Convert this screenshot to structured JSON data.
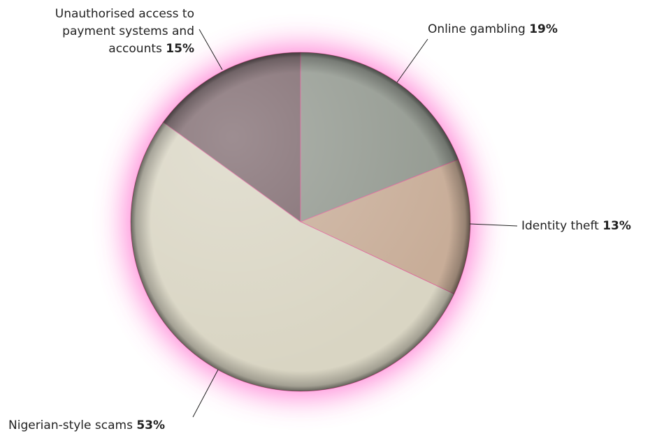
{
  "chart_data": {
    "type": "pie",
    "categories": [
      "Online gambling",
      "Identity theft",
      "Nigerian-style scams",
      "Unauthorised access to payment systems and accounts"
    ],
    "values": [
      19,
      13,
      53,
      15
    ],
    "value_labels": [
      "19%",
      "13%",
      "53%",
      "15%"
    ],
    "colors": [
      "#939990",
      "#c8ad98",
      "#d9d5c3",
      "#7d686d"
    ]
  }
}
